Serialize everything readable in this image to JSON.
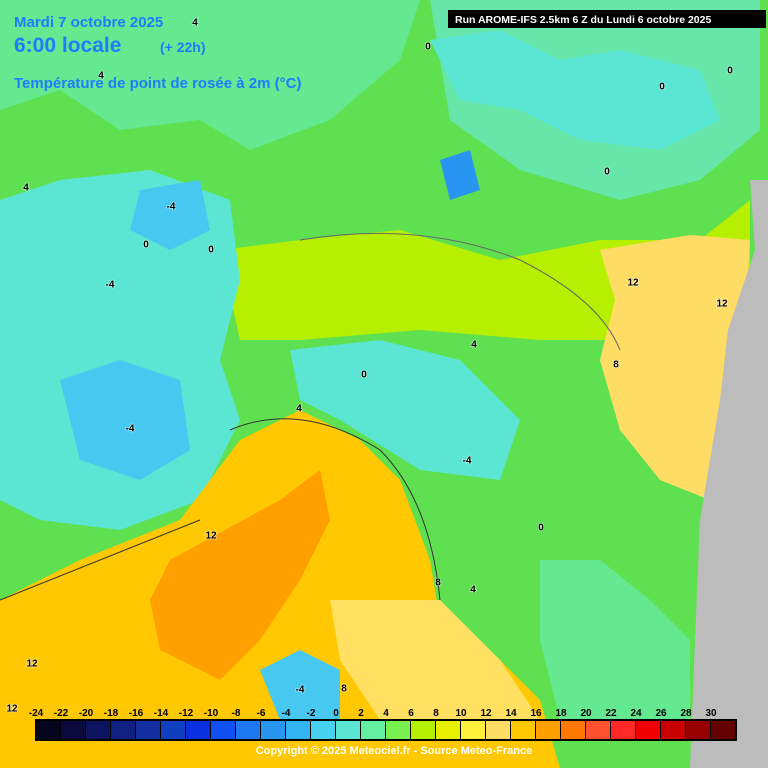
{
  "header": {
    "date": "Mardi 7 octobre 2025",
    "time": "6:00 locale",
    "lead": "(+ 22h)",
    "variable": "Température de point de rosée à 2m (°C)",
    "run": "Run AROME-IFS 2.5km 6 Z du Lundi 6 octobre 2025"
  },
  "colorbar": {
    "ticks": [
      -24,
      -22,
      -20,
      -18,
      -16,
      -14,
      -12,
      -10,
      -8,
      -6,
      -4,
      -2,
      0,
      2,
      4,
      6,
      8,
      10,
      12,
      14,
      16,
      18,
      20,
      22,
      24,
      26,
      28,
      30
    ],
    "colors": [
      "#05051e",
      "#0a0a3c",
      "#0c1460",
      "#102080",
      "#1430a0",
      "#1040c0",
      "#0a30e0",
      "#1050f0",
      "#1e78f0",
      "#2896f0",
      "#32b4f0",
      "#46d2f0",
      "#5ae6d2",
      "#64f0a0",
      "#78f050",
      "#b4f000",
      "#e6f000",
      "#fff03c",
      "#ffdc64",
      "#ffc800",
      "#ffa000",
      "#ff7800",
      "#ff5030",
      "#ff2828",
      "#f00000",
      "#c80000",
      "#960000",
      "#640000"
    ]
  },
  "contour_labels": [
    4,
    0,
    0,
    0,
    4,
    0,
    4,
    -4,
    0,
    0,
    -4,
    12,
    12,
    4,
    0,
    8,
    4,
    -4,
    -4,
    12,
    0,
    8,
    4,
    12,
    -4,
    12,
    8
  ],
  "footer": "Copyright © 2025 Meteociel.fr - Source Meteo-France"
}
